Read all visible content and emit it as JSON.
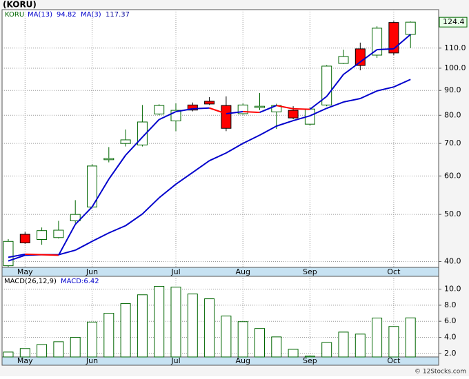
{
  "chart_data": [
    {
      "type": "candlestick",
      "title": "(KORU)",
      "name": "KORU",
      "log_scale": true,
      "categories": [
        null,
        "May",
        null,
        null,
        null,
        "Jun",
        null,
        null,
        null,
        null,
        "Jul",
        null,
        null,
        null,
        "Aug",
        null,
        null,
        null,
        "Sep",
        null,
        null,
        null,
        null,
        "Oct",
        null
      ],
      "open": [
        39.2,
        45.5,
        44.4,
        44.8,
        48.5,
        51.8,
        64.8,
        70,
        69.5,
        80.5,
        77.9,
        84,
        85.5,
        83.8,
        80.6,
        83,
        81.3,
        81.9,
        76.7,
        84,
        102.3,
        109.6,
        106.4,
        124.2,
        117.4
      ],
      "high": [
        44.5,
        46,
        47,
        48.5,
        53.5,
        63.5,
        68.8,
        74.8,
        84,
        84.3,
        84.6,
        85,
        87.2,
        87.5,
        84.6,
        88.9,
        84.5,
        83.5,
        83.2,
        101.5,
        109.2,
        112.9,
        122,
        125,
        124.8
      ],
      "low": [
        39,
        43.5,
        43.3,
        44.6,
        48,
        51.6,
        64,
        69,
        69,
        80,
        74.2,
        81.5,
        84,
        74.2,
        80.2,
        82,
        75,
        78.5,
        76.2,
        83.5,
        102,
        99,
        105,
        106.4,
        110
      ],
      "close": [
        44,
        43.7,
        46.3,
        46.4,
        50,
        62.9,
        65.2,
        71.2,
        77.5,
        83.8,
        81.9,
        82,
        84.4,
        75.2,
        84,
        83.5,
        83.8,
        79,
        82.4,
        101,
        105.7,
        101.3,
        120.9,
        107.5,
        124.4
      ],
      "up_color": "#006600",
      "down_color": "#ff0000",
      "series": [
        {
          "name": "MA(13)",
          "color": "#0000cc",
          "values": [
            40.1,
            41.2,
            41.3,
            41.3,
            42.2,
            44,
            45.8,
            47.4,
            50.1,
            54.1,
            57.7,
            61,
            64.5,
            66.9,
            70,
            72.8,
            76,
            78,
            79.8,
            82.7,
            85.2,
            86.6,
            89.8,
            91.5,
            94.82
          ]
        },
        {
          "name": "MA(3)",
          "color": "#0000cc",
          "down_color": "#ff0000",
          "values": [
            40.8,
            41.4,
            41.3,
            41.2,
            47.7,
            51.8,
            59.1,
            66.2,
            72.1,
            78.4,
            81.4,
            82.5,
            82.8,
            80.6,
            81.4,
            81.1,
            83.8,
            82.5,
            82.3,
            87.5,
            97.1,
            103,
            109.2,
            109.6,
            117.37
          ]
        }
      ],
      "last_price": 124.4,
      "ylim": [
        38.9,
        132
      ],
      "yticks": [
        {
          "value": 40,
          "label": "40.0"
        },
        {
          "value": 50,
          "label": "50.0"
        },
        {
          "value": 60,
          "label": "60.0"
        },
        {
          "value": 70,
          "label": "70.0"
        },
        {
          "value": 80,
          "label": "80.0"
        },
        {
          "value": 90,
          "label": "90.0"
        },
        {
          "value": 100,
          "label": "100.0"
        },
        {
          "value": 110,
          "label": "110.0"
        }
      ],
      "grid": true
    },
    {
      "type": "bar",
      "title": "MACD(26,12,9)",
      "legend_text": "MACD:6.42",
      "color": "#006600",
      "values": [
        2.16,
        2.6,
        3.1,
        3.45,
        4.0,
        5.9,
        7.0,
        8.2,
        9.3,
        10.35,
        10.25,
        9.4,
        8.8,
        6.65,
        5.95,
        5.1,
        4.05,
        2.5,
        1.65,
        3.35,
        4.65,
        4.4,
        6.4,
        5.35,
        6.42
      ],
      "ylim": [
        1.55,
        11.6
      ],
      "yticks": [
        {
          "value": 2,
          "label": "2.0"
        },
        {
          "value": 4,
          "label": "4.0"
        },
        {
          "value": 6,
          "label": "6.0"
        },
        {
          "value": 8,
          "label": "8.0"
        },
        {
          "value": 10,
          "label": "10.0"
        }
      ],
      "grid": true,
      "footer": "© 12Stocks.com"
    }
  ]
}
